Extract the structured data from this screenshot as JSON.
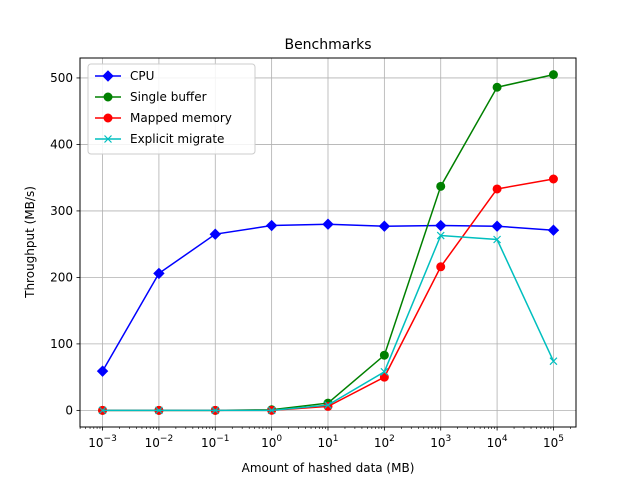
{
  "chart_data": {
    "type": "line",
    "title": "Benchmarks",
    "xlabel": "Amount of hashed data (MB)",
    "ylabel": "Throughput (MB/s)",
    "xscale": "log",
    "xlim": [
      -3.4,
      5.4
    ],
    "ylim": [
      -25,
      530
    ],
    "grid": true,
    "legend_position": "upper left",
    "xticks": [
      {
        "exp": -3,
        "base": "10",
        "sup": "−3"
      },
      {
        "exp": -2,
        "base": "10",
        "sup": "−2"
      },
      {
        "exp": -1,
        "base": "10",
        "sup": "−1"
      },
      {
        "exp": 0,
        "base": "10",
        "sup": "0"
      },
      {
        "exp": 1,
        "base": "10",
        "sup": "1"
      },
      {
        "exp": 2,
        "base": "10",
        "sup": "2"
      },
      {
        "exp": 3,
        "base": "10",
        "sup": "3"
      },
      {
        "exp": 4,
        "base": "10",
        "sup": "4"
      },
      {
        "exp": 5,
        "base": "10",
        "sup": "5"
      }
    ],
    "yticks": [
      0,
      100,
      200,
      300,
      400,
      500
    ],
    "x": [
      0.001,
      0.01,
      0.1,
      1,
      10,
      100,
      1000,
      10000,
      100000
    ],
    "series": [
      {
        "name": "CPU",
        "color": "#0000ff",
        "marker": "diamond",
        "values": [
          59,
          206,
          265,
          278,
          280,
          277,
          278,
          277,
          271
        ]
      },
      {
        "name": "Single buffer",
        "color": "#008000",
        "marker": "circle",
        "values": [
          0,
          0,
          0,
          1,
          11,
          83,
          337,
          486,
          505
        ]
      },
      {
        "name": "Mapped memory",
        "color": "#ff0000",
        "marker": "circle",
        "values": [
          0,
          0,
          0,
          0,
          6,
          50,
          216,
          333,
          348
        ]
      },
      {
        "name": "Explicit migrate",
        "color": "#00bfbf",
        "marker": "x",
        "values": [
          0,
          0,
          0,
          0,
          8,
          58,
          263,
          257,
          74
        ]
      }
    ]
  }
}
